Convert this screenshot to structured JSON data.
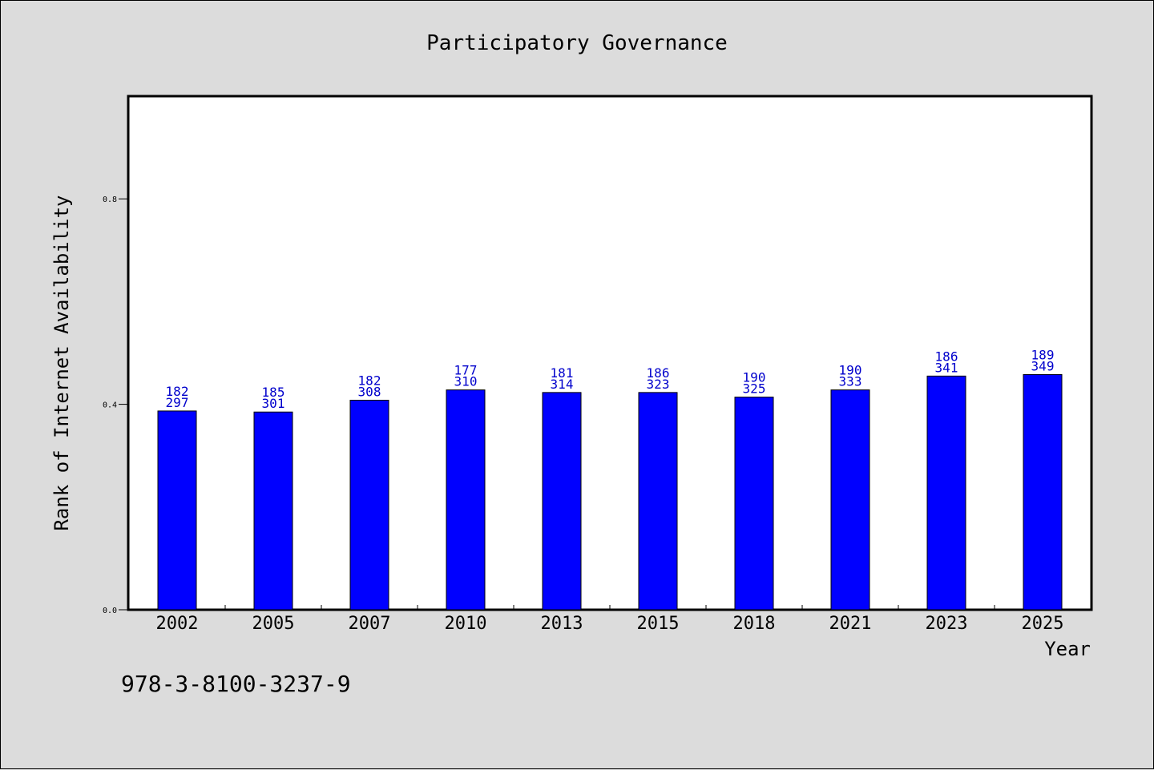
{
  "chart_data": {
    "type": "bar",
    "title": "Participatory Governance",
    "xlabel": "Year",
    "ylabel": "Rank of Internet Availability",
    "categories": [
      "2002",
      "2005",
      "2007",
      "2010",
      "2013",
      "2015",
      "2018",
      "2021",
      "2023",
      "2025"
    ],
    "values": [
      0.387,
      0.385,
      0.408,
      0.428,
      0.423,
      0.423,
      0.414,
      0.428,
      0.455,
      0.458
    ],
    "bar_labels": [
      [
        "182",
        "297"
      ],
      [
        "185",
        "301"
      ],
      [
        "182",
        "308"
      ],
      [
        "177",
        "310"
      ],
      [
        "181",
        "314"
      ],
      [
        "186",
        "323"
      ],
      [
        "190",
        "325"
      ],
      [
        "190",
        "333"
      ],
      [
        "186",
        "341"
      ],
      [
        "189",
        "349"
      ]
    ],
    "y_ticks": [
      "0.0",
      "0.4",
      "0.8"
    ],
    "ylim": [
      0,
      1.0
    ],
    "grid": false,
    "bar_color": "#0000ff",
    "label_color": "#0000cc",
    "background": "#dcdcdc",
    "plot_background": "#ffffff"
  },
  "footer": {
    "isbn": "978-3-8100-3237-9"
  }
}
